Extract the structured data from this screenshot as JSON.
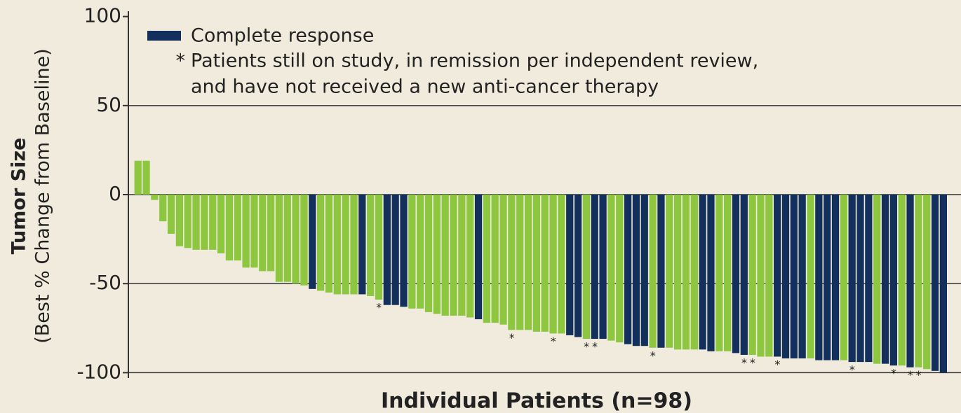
{
  "chart_data": {
    "type": "bar",
    "y_label": "Tumor Size",
    "y_sublabel": "(Best % Change from Baseline)",
    "x_label": "Individual Patients (n=98)",
    "ylim": [
      -103,
      103
    ],
    "yticks": [
      100,
      50,
      0,
      -50,
      -100
    ],
    "grid": true,
    "color": "#8dc63f",
    "legend": {
      "swatch_label": "Complete response",
      "swatch_color": "#13305c",
      "note_symbol": "*",
      "note_lines": [
        "Patients still on study, in remission per independent review,",
        "and have not received a new anti-cancer therapy"
      ]
    },
    "values": [
      19,
      19,
      -3,
      -15,
      -22,
      -29,
      -30,
      -31,
      -31,
      -31,
      -33,
      -37,
      -37,
      -41,
      -41,
      -43,
      -43,
      -49,
      -49,
      -50,
      -51,
      -53,
      -54,
      -55,
      -56,
      -56,
      -56,
      -56,
      -57,
      -59,
      -62,
      -62,
      -63,
      -64,
      -64,
      -66,
      -67,
      -68,
      -68,
      -68,
      -69,
      -70,
      -72,
      -72,
      -73,
      -76,
      -76,
      -76,
      -77,
      -77,
      -78,
      -78,
      -79,
      -80,
      -81,
      -81,
      -81,
      -82,
      -83,
      -84,
      -85,
      -85,
      -86,
      -86,
      -86,
      -87,
      -87,
      -87,
      -87,
      -88,
      -88,
      -88,
      -89,
      -90,
      -90,
      -91,
      -91,
      -91,
      -92,
      -92,
      -92,
      -92,
      -93,
      -93,
      -93,
      -93,
      -94,
      -94,
      -94,
      -95,
      -95,
      -96,
      -96,
      -97,
      -97,
      -98,
      -99,
      -100
    ],
    "complete_response": [
      false,
      false,
      false,
      false,
      false,
      false,
      false,
      false,
      false,
      false,
      false,
      false,
      false,
      false,
      false,
      false,
      false,
      false,
      false,
      false,
      false,
      true,
      false,
      false,
      false,
      false,
      false,
      true,
      false,
      false,
      true,
      true,
      true,
      false,
      false,
      false,
      false,
      false,
      false,
      false,
      false,
      true,
      false,
      false,
      false,
      false,
      false,
      false,
      false,
      false,
      false,
      false,
      true,
      true,
      false,
      true,
      true,
      false,
      false,
      true,
      true,
      true,
      false,
      true,
      false,
      false,
      false,
      false,
      true,
      true,
      false,
      false,
      true,
      true,
      false,
      false,
      false,
      true,
      true,
      true,
      true,
      false,
      true,
      true,
      true,
      false,
      true,
      true,
      true,
      false,
      true,
      true,
      false,
      true,
      false,
      false,
      true,
      true
    ],
    "on_study": [
      false,
      false,
      false,
      false,
      false,
      false,
      false,
      false,
      false,
      false,
      false,
      false,
      false,
      false,
      false,
      false,
      false,
      false,
      false,
      false,
      false,
      false,
      false,
      false,
      false,
      false,
      false,
      false,
      false,
      true,
      false,
      false,
      false,
      false,
      false,
      false,
      false,
      false,
      false,
      false,
      false,
      false,
      false,
      false,
      false,
      true,
      false,
      false,
      false,
      false,
      true,
      false,
      false,
      false,
      true,
      true,
      false,
      false,
      false,
      false,
      false,
      false,
      true,
      false,
      false,
      false,
      false,
      false,
      false,
      false,
      false,
      false,
      false,
      true,
      true,
      false,
      false,
      true,
      false,
      false,
      false,
      false,
      false,
      false,
      false,
      false,
      true,
      false,
      false,
      false,
      false,
      true,
      false,
      true,
      true,
      false,
      false,
      false
    ]
  }
}
